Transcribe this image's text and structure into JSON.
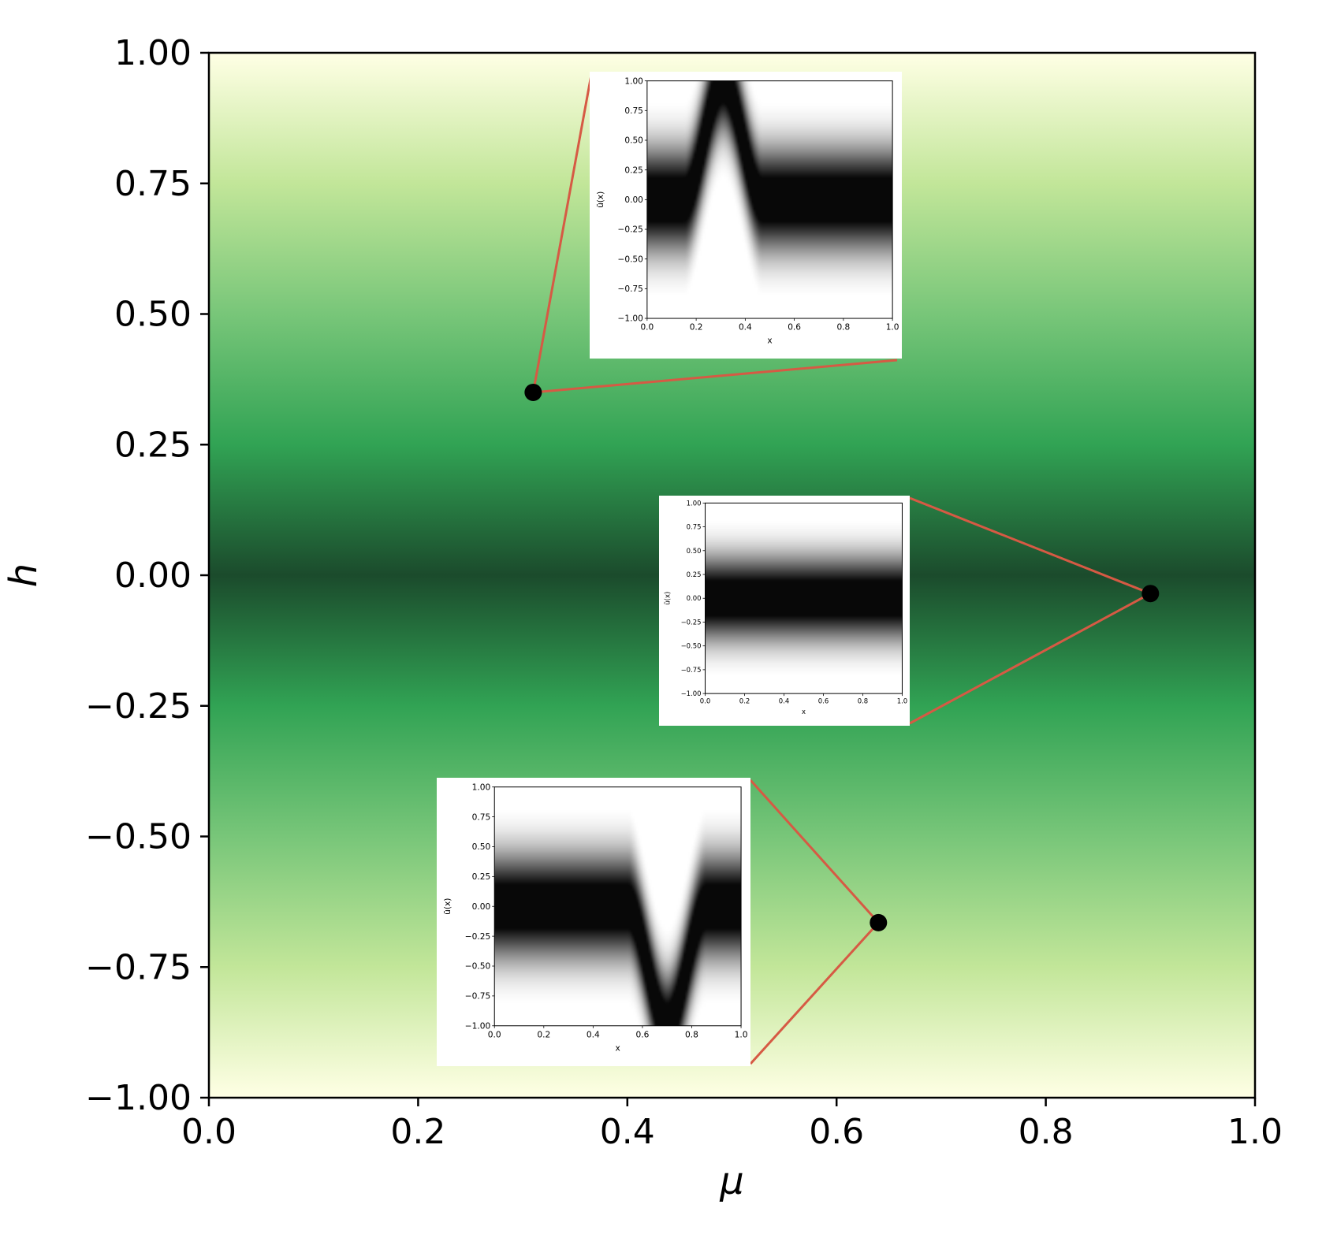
{
  "chart_data": {
    "type": "heatmap",
    "title": "",
    "xlabel": "μ",
    "ylabel": "h",
    "xlim": [
      0.0,
      1.0
    ],
    "ylim": [
      -1.0,
      1.0
    ],
    "x_ticks": [
      "0.0",
      "0.2",
      "0.4",
      "0.6",
      "0.8",
      "1.0"
    ],
    "y_ticks": [
      "1.00",
      "0.75",
      "0.50",
      "0.25",
      "0.00",
      "−0.25",
      "−0.50",
      "−0.75",
      "−1.00"
    ],
    "colormap": "Greens (dark at h = 0, pale yellow at h = ±1)",
    "colormap_stops": [
      "#ffffe5",
      "#c2e699",
      "#78c679",
      "#31a354",
      "#1b4b2c"
    ],
    "grid": false,
    "points": [
      {
        "mu": 0.31,
        "h": 0.35
      },
      {
        "mu": 0.9,
        "h": -0.035
      },
      {
        "mu": 0.64,
        "h": -0.665
      }
    ],
    "insets": [
      {
        "point_index": 0,
        "ylabel": "ũ(x)",
        "xlabel": "x",
        "x_ticks": [
          "0.0",
          "0.2",
          "0.4",
          "0.6",
          "0.8",
          "1.0"
        ],
        "y_ticks": [
          "1.00",
          "0.75",
          "0.50",
          "0.25",
          "0.00",
          "−0.25",
          "−0.50",
          "−0.75",
          "−1.00"
        ],
        "feature": {
          "center_x": 0.31,
          "peak_u": 1.0,
          "direction": "up"
        }
      },
      {
        "point_index": 1,
        "ylabel": "ũ(x)",
        "xlabel": "x",
        "x_ticks": [
          "0.0",
          "0.2",
          "0.4",
          "0.6",
          "0.8",
          "1.0"
        ],
        "y_ticks": [
          "1.00",
          "0.75",
          "0.50",
          "0.25",
          "0.00",
          "−0.25",
          "−0.50",
          "−0.75",
          "−1.00"
        ],
        "feature": null
      },
      {
        "point_index": 2,
        "ylabel": "ũ(x)",
        "xlabel": "x",
        "x_ticks": [
          "0.0",
          "0.2",
          "0.4",
          "0.6",
          "0.8",
          "1.0"
        ],
        "y_ticks": [
          "1.00",
          "0.75",
          "0.50",
          "0.25",
          "0.00",
          "−0.25",
          "−0.50",
          "−0.75",
          "−1.00"
        ],
        "feature": {
          "center_x": 0.7,
          "peak_u": -1.0,
          "direction": "down"
        }
      }
    ],
    "colors": {
      "connector": "#d65a44",
      "point": "#000000",
      "frame": "#000000"
    }
  }
}
